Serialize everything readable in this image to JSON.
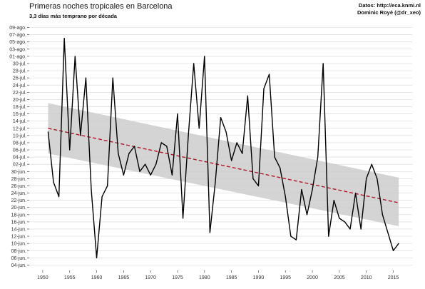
{
  "chart_data": {
    "type": "line",
    "title": "Primeras noches tropicales en Barcelona",
    "subtitle": "3,3 días más temprano por década",
    "caption": [
      "Datos: http://eca.knmi.nl",
      "Dominic Royé (@dr_xeo)"
    ],
    "xlabel": "",
    "ylabel": "",
    "xlim": [
      1947.5,
      2018.5
    ],
    "ylim": [
      3,
      10.5
    ],
    "y_unit": "days after 1 June (axis shows dates)",
    "x_ticks": [
      1950,
      1955,
      1960,
      1965,
      1970,
      1975,
      1980,
      1985,
      1990,
      1995,
      2000,
      2005,
      2010,
      2015
    ],
    "y_ticks": [
      {
        "v": 4,
        "label": "04-jun."
      },
      {
        "v": 6,
        "label": "06-jun."
      },
      {
        "v": 8,
        "label": "08-jun."
      },
      {
        "v": 10,
        "label": "10-jun."
      },
      {
        "v": 12,
        "label": "12-jun."
      },
      {
        "v": 14,
        "label": "14-jun."
      },
      {
        "v": 16,
        "label": "16-jun."
      },
      {
        "v": 18,
        "label": "18-jun."
      },
      {
        "v": 20,
        "label": "20-jun."
      },
      {
        "v": 22,
        "label": "22-jun."
      },
      {
        "v": 24,
        "label": "24-jun."
      },
      {
        "v": 26,
        "label": "26-jun."
      },
      {
        "v": 28,
        "label": "28-jun."
      },
      {
        "v": 30,
        "label": "30-jun."
      },
      {
        "v": 32,
        "label": "02-jul."
      },
      {
        "v": 34,
        "label": "04-jul."
      },
      {
        "v": 36,
        "label": "06-jul."
      },
      {
        "v": 38,
        "label": "08-jul."
      },
      {
        "v": 40,
        "label": "10-jul."
      },
      {
        "v": 42,
        "label": "12-jul."
      },
      {
        "v": 44,
        "label": "14-jul."
      },
      {
        "v": 46,
        "label": "16-jul."
      },
      {
        "v": 48,
        "label": "18-jul."
      },
      {
        "v": 50,
        "label": "20-jul."
      },
      {
        "v": 52,
        "label": "22-jul."
      },
      {
        "v": 54,
        "label": "24-jul."
      },
      {
        "v": 56,
        "label": "26-jul."
      },
      {
        "v": 58,
        "label": "28-jul."
      },
      {
        "v": 60,
        "label": "30-jul."
      },
      {
        "v": 62,
        "label": "01-ago."
      },
      {
        "v": 64,
        "label": "03-ago."
      },
      {
        "v": 66,
        "label": "05-ago."
      },
      {
        "v": 68,
        "label": "07-ago."
      },
      {
        "v": 70,
        "label": "09-ago."
      }
    ],
    "grid": true,
    "series": [
      {
        "color": "#000000",
        "x": [
          1951,
          1952,
          1953,
          1954,
          1955,
          1956,
          1957,
          1958,
          1959,
          1960,
          1961,
          1962,
          1963,
          1964,
          1965,
          1966,
          1967,
          1968,
          1969,
          1970,
          1971,
          1972,
          1973,
          1974,
          1975,
          1976,
          1977,
          1978,
          1979,
          1980,
          1981,
          1982,
          1983,
          1984,
          1985,
          1986,
          1987,
          1988,
          1989,
          1990,
          1991,
          1992,
          1993,
          1994,
          1995,
          1996,
          1997,
          1998,
          1999,
          2000,
          2001,
          2002,
          2003,
          2004,
          2005,
          2006,
          2007,
          2008,
          2009,
          2010,
          2011,
          2012,
          2013,
          2014,
          2015,
          2016
        ],
        "y": [
          41,
          27,
          23,
          67,
          36,
          62,
          40,
          56,
          25,
          6,
          23,
          26,
          56,
          35,
          29,
          35,
          37,
          30,
          32,
          29,
          32,
          38,
          37,
          29,
          46,
          17,
          40,
          60,
          42,
          62,
          13,
          27,
          45,
          41,
          33,
          38,
          35,
          51,
          28,
          26,
          53,
          57,
          34,
          31,
          23,
          12,
          11,
          25,
          18,
          25,
          34,
          60,
          12,
          22,
          17,
          16,
          14,
          24,
          14,
          28,
          32,
          28,
          18,
          13,
          8,
          10
        ]
      }
    ],
    "trend": {
      "color": "#b2182b",
      "style": "dashed",
      "start": {
        "x": 1951,
        "y": 42.0
      },
      "end": {
        "x": 2016,
        "y": 21.3
      }
    },
    "confidence_band": {
      "color": "#cccccc",
      "upper": [
        {
          "x": 1951,
          "y": 49.0
        },
        {
          "x": 2016,
          "y": 28.3
        }
      ],
      "lower": [
        {
          "x": 1951,
          "y": 35.0
        },
        {
          "x": 2016,
          "y": 14.8
        }
      ]
    }
  }
}
